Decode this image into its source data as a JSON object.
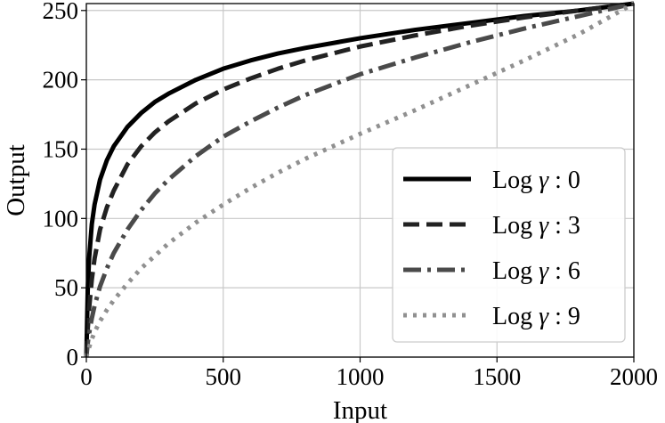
{
  "chart_data": {
    "type": "line",
    "xlabel": "Input",
    "ylabel": "Output",
    "xlim": [
      0,
      2000
    ],
    "ylim": [
      0,
      255
    ],
    "x_ticks": [
      0,
      500,
      1000,
      1500,
      2000
    ],
    "y_ticks": [
      0,
      50,
      100,
      150,
      200,
      250
    ],
    "grid": true,
    "legend_position": "lower-right",
    "x": [
      0,
      5,
      10,
      20,
      30,
      50,
      75,
      100,
      150,
      200,
      250,
      300,
      400,
      500,
      600,
      700,
      800,
      1000,
      1200,
      1400,
      1600,
      1800,
      2000
    ],
    "series": [
      {
        "name_prefix": "Log ",
        "name_symbol": "γ",
        "name_suffix": " : 0",
        "color": "#000000",
        "dash": "solid",
        "values": [
          0,
          48,
          71,
          96,
          110,
          128,
          142,
          152,
          166,
          176,
          184,
          190,
          200,
          208,
          214,
          219,
          223,
          230,
          236,
          241,
          246,
          250,
          255
        ]
      },
      {
        "name_prefix": "Log ",
        "name_symbol": "γ",
        "name_suffix": " : 3",
        "color": "#222222",
        "dash": "dashed",
        "values": [
          0,
          20,
          35,
          56,
          71,
          92,
          108,
          120,
          139,
          152,
          162,
          170,
          183,
          193,
          201,
          208,
          214,
          224,
          232,
          239,
          245,
          250,
          255
        ]
      },
      {
        "name_prefix": "Log ",
        "name_symbol": "γ",
        "name_suffix": " : 6",
        "color": "#4a4a4a",
        "dash": "dashdot",
        "values": [
          0,
          10,
          17,
          28,
          37,
          51,
          64,
          75,
          92,
          106,
          118,
          128,
          145,
          159,
          170,
          180,
          189,
          204,
          216,
          227,
          237,
          246,
          255
        ]
      },
      {
        "name_prefix": "Log ",
        "name_symbol": "γ",
        "name_suffix": " : 9",
        "color": "#909090",
        "dash": "dotted",
        "values": [
          0,
          4,
          7,
          13,
          18,
          26,
          34,
          41,
          53,
          64,
          73,
          82,
          97,
          110,
          122,
          133,
          143,
          161,
          178,
          196,
          214,
          233,
          255
        ]
      }
    ]
  }
}
